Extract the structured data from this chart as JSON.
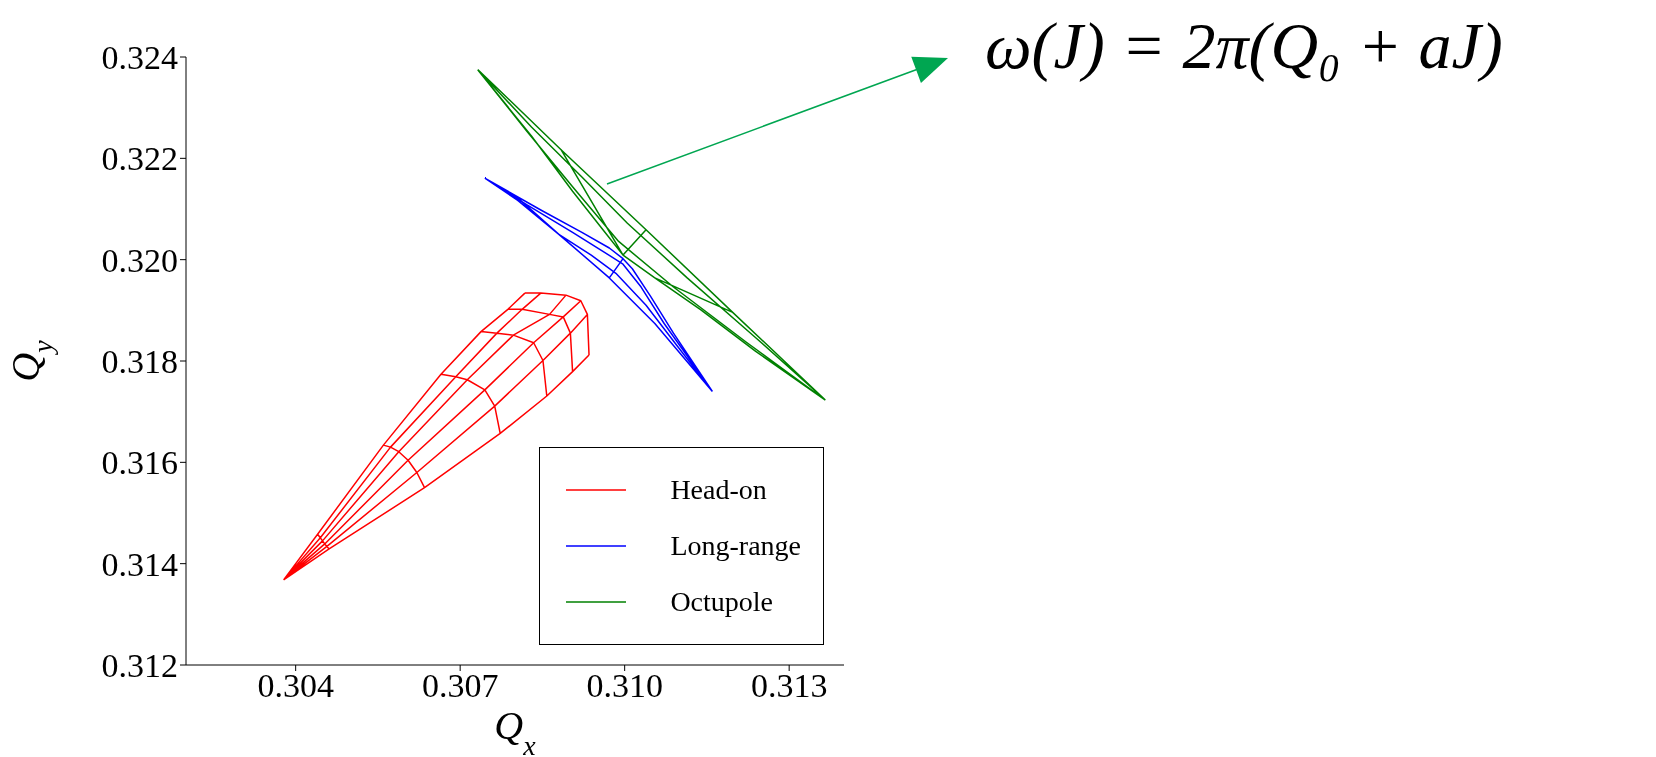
{
  "chart_data": {
    "type": "line",
    "xlabel": "Q$_{x}$",
    "ylabel": "Q$_{y}$",
    "xlim": [
      0.302,
      0.314
    ],
    "xticks": [
      0.304,
      0.307,
      {
        "value": 0.31,
        "label": "0.310"
      },
      0.313
    ],
    "ylim": [
      0.312,
      0.324
    ],
    "yticks": [
      0.312,
      0.314,
      0.316,
      0.318,
      {
        "value": 0.32,
        "label": "0.320"
      },
      0.322,
      0.324
    ],
    "legend": "bottom right",
    "marker": "none",
    "line_style": "solid",
    "annotations": [
      "ω(J) = 2π(Q₀ + aJ)"
    ],
    "series": [
      {
        "name": "Head-on",
        "color": "#ff0000",
        "x": [
          0.30378,
          0.3044,
          0.3056,
          0.30665,
          0.30738,
          0.30787,
          0.30818,
          null,
          0.30378,
          0.30445,
          0.30573,
          0.30692,
          0.30767,
          0.30813,
          0.30847,
          null,
          0.30378,
          0.30449,
          0.30588,
          0.30713,
          0.30797,
          0.30863,
          0.30893,
          null,
          0.30378,
          0.30453,
          0.30605,
          0.30745,
          0.30834,
          0.30888,
          0.3092,
          null,
          0.30378,
          0.30457,
          0.30621,
          0.30763,
          0.30851,
          0.30901,
          0.30932,
          null,
          0.30378,
          0.30461,
          0.30635,
          0.30773,
          0.30858,
          0.30905,
          0.30935,
          null,
          0.3044,
          0.30445,
          0.30449,
          0.30453,
          0.30457,
          0.30461,
          null,
          0.3056,
          0.30573,
          0.30588,
          0.30605,
          0.30621,
          0.30635,
          null,
          0.30665,
          0.30692,
          0.30713,
          0.30745,
          0.30763,
          0.30773,
          null,
          0.30738,
          0.30767,
          0.30797,
          0.30834,
          0.30851,
          0.30858,
          null,
          0.30787,
          0.30813,
          0.30863,
          0.30888,
          0.30901,
          0.30905,
          null,
          0.30818,
          0.30847,
          0.30893,
          0.3092,
          0.30932,
          0.30935
        ],
        "values": [
          0.31368,
          0.31458,
          0.31634,
          0.31774,
          0.31858,
          0.31902,
          0.31934,
          null,
          0.31368,
          0.31451,
          0.3163,
          0.31769,
          0.31855,
          0.31902,
          0.31934,
          null,
          0.31368,
          0.31445,
          0.31621,
          0.31763,
          0.31851,
          0.31892,
          0.3193,
          null,
          0.31368,
          0.31439,
          0.31604,
          0.31743,
          0.31836,
          0.31887,
          0.31919,
          null,
          0.31368,
          0.31434,
          0.3158,
          0.31711,
          0.31801,
          0.31855,
          0.31892,
          null,
          0.31368,
          0.31429,
          0.3155,
          0.31657,
          0.31731,
          0.31779,
          0.31812,
          null,
          0.31458,
          0.31451,
          0.31445,
          0.31439,
          0.31434,
          0.31429,
          null,
          0.31634,
          0.3163,
          0.31621,
          0.31604,
          0.3158,
          0.3155,
          null,
          0.31774,
          0.31769,
          0.31763,
          0.31743,
          0.31711,
          0.31657,
          null,
          0.31858,
          0.31855,
          0.31851,
          0.31836,
          0.31801,
          0.31731,
          null,
          0.31902,
          0.31902,
          0.31892,
          0.31887,
          0.31855,
          0.31779,
          null,
          0.31934,
          0.31934,
          0.3193,
          0.31919,
          0.31892,
          0.31812
        ]
      },
      {
        "name": "Long-range",
        "color": "#0000ff",
        "x": [
          0.30745,
          0.30847,
          0.30922,
          0.30972,
          0.30997,
          0.31014,
          0.31047,
          0.31089,
          0.3116,
          null,
          0.30745,
          0.30822,
          0.30905,
          0.30964,
          0.30997,
          0.3103,
          0.31072,
          0.3116,
          null,
          0.30745,
          0.30805,
          0.3088,
          0.30939,
          0.30984,
          0.31039,
          0.31097,
          0.3116,
          null,
          0.30745,
          0.30805,
          0.3088,
          0.30972,
          0.31055,
          0.3116,
          null,
          0.30972,
          0.30997
        ],
        "values": [
          0.32161,
          0.32098,
          0.32054,
          0.32023,
          0.32002,
          0.31982,
          0.31928,
          0.31855,
          0.3174,
          null,
          0.32161,
          0.32108,
          0.32054,
          0.32014,
          0.31991,
          0.31946,
          0.31874,
          0.3174,
          null,
          0.32161,
          0.32117,
          0.3205,
          0.32009,
          0.31973,
          0.3191,
          0.31828,
          0.3174,
          null,
          0.32161,
          0.32122,
          0.3205,
          0.31964,
          0.31874,
          0.3174,
          null,
          0.31964,
          0.32002
        ]
      },
      {
        "name": "Octupole",
        "color": "#008000",
        "x": [
          0.30732,
          0.30772,
          0.30884,
          0.31039,
          0.31197,
          0.31366,
          null,
          0.30732,
          0.3083,
          0.30922,
          0.31005,
          0.31114,
          0.31239,
          0.31366,
          null,
          0.30732,
          0.30822,
          0.30905,
          0.30989,
          0.31089,
          0.31222,
          0.31366,
          null,
          0.30732,
          0.3083,
          0.30905,
          0.30964,
          0.30997,
          0.31055,
          0.31139,
          0.31239,
          0.31366,
          null,
          0.30884,
          0.30997,
          null,
          0.31039,
          0.30997,
          null,
          0.31197,
          0.31055
        ],
        "values": [
          0.32375,
          0.32334,
          0.32217,
          0.32059,
          0.31896,
          0.31723,
          null,
          0.32375,
          0.32262,
          0.32163,
          0.32072,
          0.31964,
          0.31846,
          0.31723,
          null,
          0.32375,
          0.32253,
          0.32144,
          0.32036,
          0.31946,
          0.31837,
          0.31723,
          null,
          0.32375,
          0.32244,
          0.32135,
          0.32054,
          0.32009,
          0.31964,
          0.31901,
          0.31819,
          0.31723,
          null,
          0.32217,
          0.32009,
          null,
          0.32059,
          0.32009,
          null,
          0.31896,
          0.31964
        ]
      }
    ]
  }
}
